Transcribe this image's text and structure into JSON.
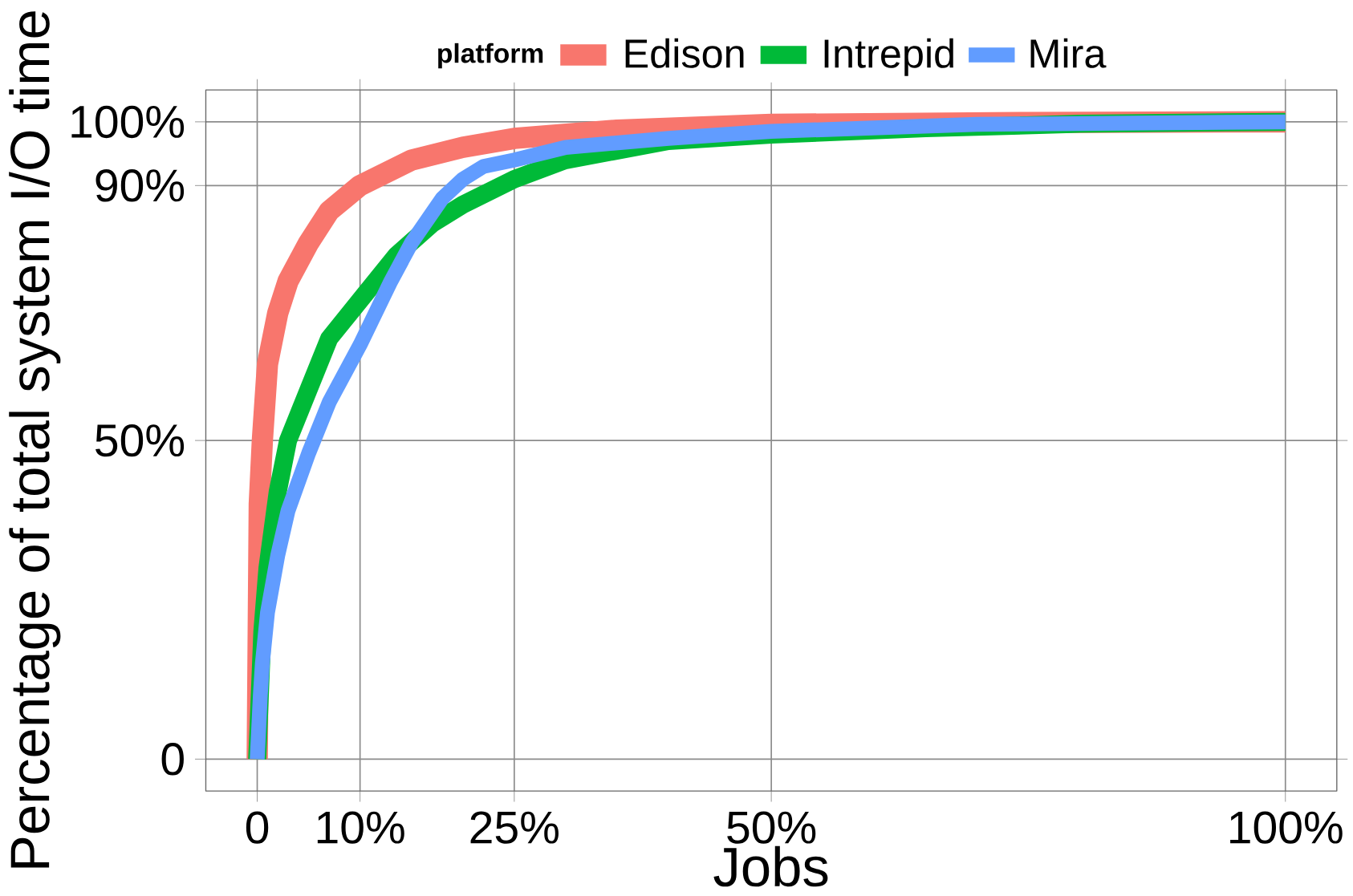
{
  "chart_data": {
    "type": "line",
    "xlabel": "Jobs",
    "ylabel": "Percentage of total system I/O time",
    "legend_title": "platform",
    "xlim": [
      -5,
      105
    ],
    "ylim": [
      -5,
      105
    ],
    "xticks": [
      0,
      {
        "value": 10,
        "label": "10%"
      },
      {
        "value": 25,
        "label": "25%"
      },
      {
        "value": 50,
        "label": "50%"
      },
      {
        "value": 100,
        "label": "100%"
      }
    ],
    "yticks": [
      0,
      {
        "value": 50,
        "label": "50%"
      },
      {
        "value": 90,
        "label": "90%"
      },
      {
        "value": 100,
        "label": "100%"
      }
    ],
    "grid": true,
    "legend": "top",
    "marker": "none",
    "line_style": "solid",
    "series": [
      {
        "name": "Edison",
        "color": "#f8766d",
        "x": [
          0,
          0.2,
          0.5,
          1,
          2,
          3,
          5,
          7,
          10,
          15,
          20,
          25,
          35,
          50,
          75,
          100
        ],
        "values": [
          0,
          40,
          50,
          62,
          70,
          75,
          81,
          86,
          90,
          94,
          96,
          97.4,
          98.7,
          99.6,
          99.9,
          100
        ]
      },
      {
        "name": "Intrepid",
        "color": "#00ba38",
        "x": [
          0,
          0.5,
          1,
          2,
          3,
          5,
          7,
          10,
          13.5,
          17,
          20,
          25,
          30,
          40,
          50,
          65,
          80,
          100
        ],
        "values": [
          0,
          20,
          30,
          42,
          50,
          58,
          66,
          72,
          79,
          84,
          87,
          91,
          94,
          97,
          98,
          99,
          99.7,
          100
        ]
      },
      {
        "name": "Mira",
        "color": "#619cff",
        "x": [
          0,
          0.3,
          0.5,
          1,
          2,
          3,
          5,
          7,
          10,
          13,
          15,
          18,
          20,
          22,
          25,
          30,
          40,
          50,
          70,
          100
        ],
        "values": [
          0,
          10,
          15,
          23,
          32,
          39,
          48,
          56,
          65,
          75,
          81,
          88,
          91,
          93,
          94,
          96,
          97.4,
          98.5,
          99.6,
          100
        ]
      }
    ]
  }
}
